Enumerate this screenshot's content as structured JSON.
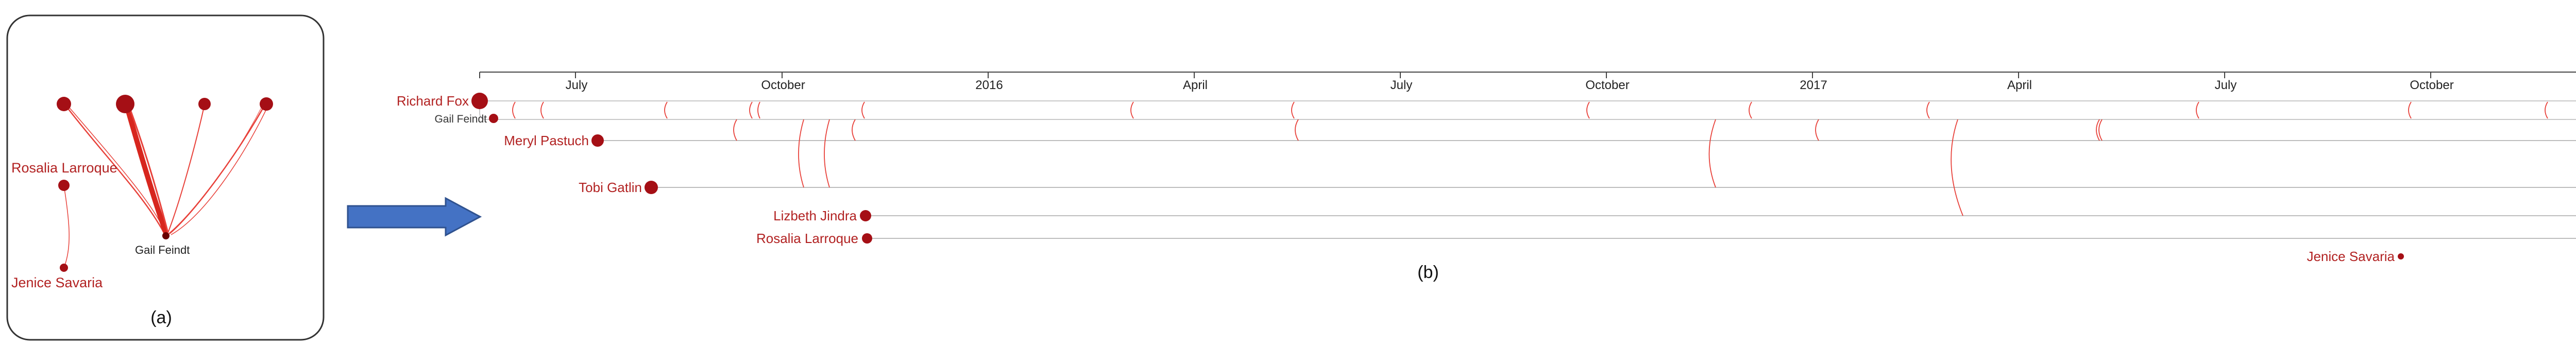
{
  "panel_a": {
    "caption": "(a)",
    "labels": {
      "rosalia": "Rosalia Larroque",
      "gail": "Gail Feindt",
      "jenice": "Jenice Savaria"
    }
  },
  "panel_b": {
    "caption": "(b)",
    "axis_ticks": [
      "July",
      "October",
      "2016",
      "April",
      "July",
      "October",
      "2017",
      "April",
      "July",
      "October"
    ],
    "rows": [
      {
        "name": "Richard Fox"
      },
      {
        "name": "Gail Feindt"
      },
      {
        "name": "Meryl Pastuch"
      },
      {
        "name": "Tobi Gatlin"
      },
      {
        "name": "Lizbeth Jindra"
      },
      {
        "name": "Rosalia Larroque"
      },
      {
        "name": "Jenice Savaria"
      }
    ]
  },
  "colors": {
    "node": "#a50f15",
    "label": "#b22222",
    "link": "#e8413a",
    "line": "#bdbdbd",
    "arrow_fill": "#4472c4",
    "arrow_stroke": "#2f528f"
  }
}
